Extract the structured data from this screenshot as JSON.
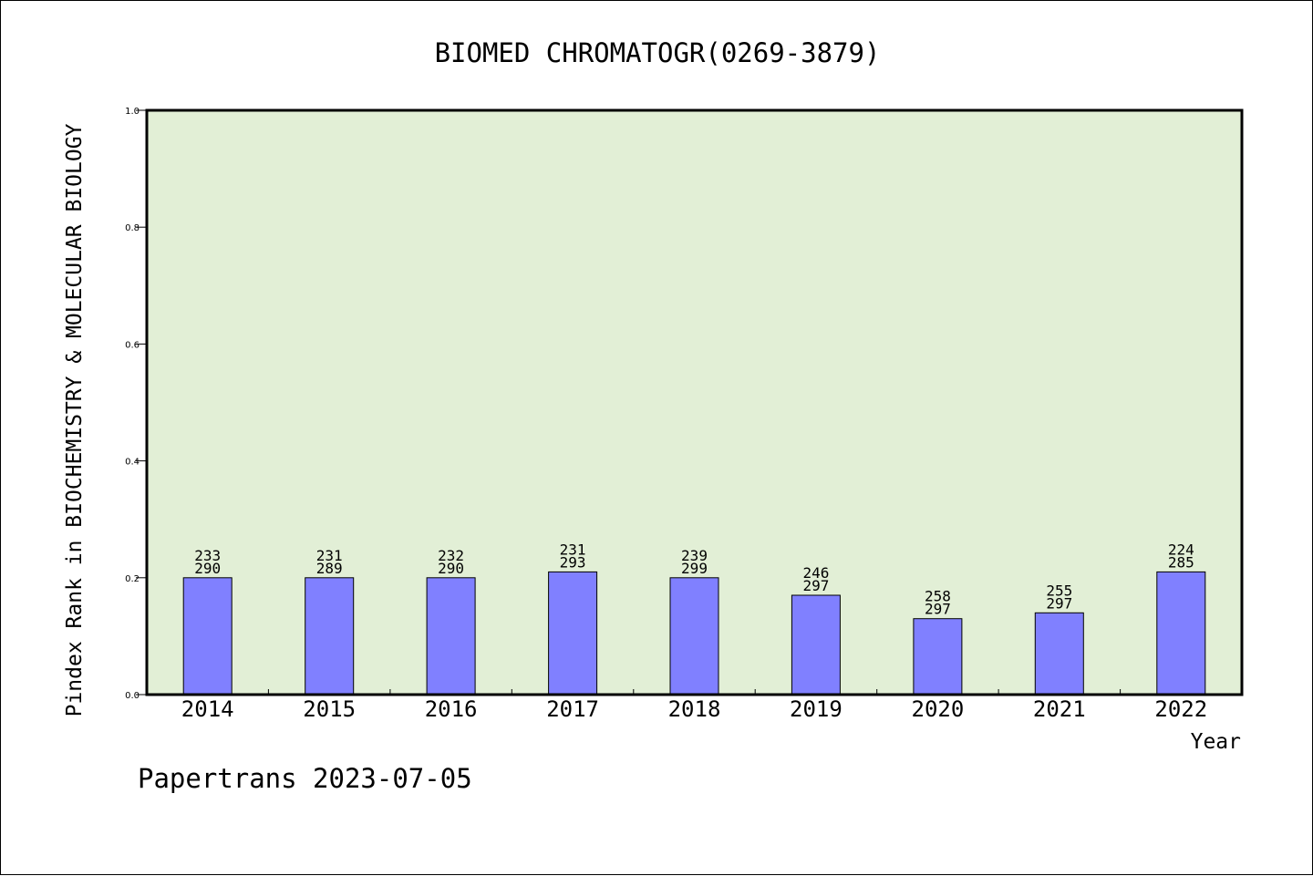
{
  "chart_data": {
    "type": "bar",
    "title": "BIOMED CHROMATOGR(0269-3879)",
    "xlabel": "Year",
    "ylabel": "Pindex Rank in BIOCHEMISTRY & MOLECULAR BIOLOGY",
    "ylim": [
      0.0,
      1.0
    ],
    "yticks": [
      "0.0",
      "0.2",
      "0.4",
      "0.6",
      "0.8",
      "1.0"
    ],
    "categories": [
      "2014",
      "2015",
      "2016",
      "2017",
      "2018",
      "2019",
      "2020",
      "2021",
      "2022"
    ],
    "values": [
      0.2,
      0.2,
      0.2,
      0.21,
      0.2,
      0.17,
      0.13,
      0.14,
      0.21
    ],
    "rank_labels": [
      [
        "233",
        "290"
      ],
      [
        "231",
        "289"
      ],
      [
        "232",
        "290"
      ],
      [
        "231",
        "293"
      ],
      [
        "239",
        "299"
      ],
      [
        "246",
        "297"
      ],
      [
        "258",
        "297"
      ],
      [
        "255",
        "297"
      ],
      [
        "224",
        "285"
      ]
    ],
    "grid": false,
    "colors": {
      "plot_background": "#e2efd6",
      "bar_fill": "#8080ff",
      "bar_stroke": "#000000",
      "axis": "#000000"
    }
  },
  "footer": {
    "text": "Papertrans 2023-07-05"
  }
}
